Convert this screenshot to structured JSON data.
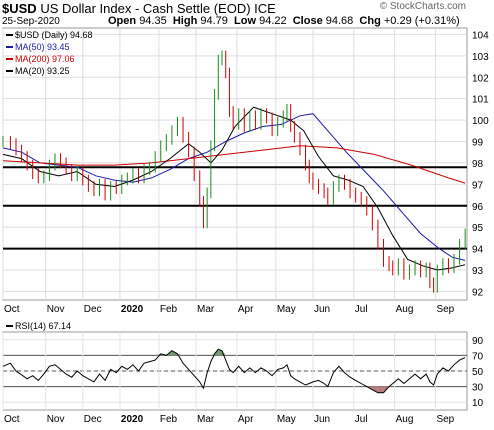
{
  "header": {
    "symbol": "$USD",
    "name": "US Dollar Index - Cash Settle (EOD)",
    "exchange": "ICE",
    "date": "25-Sep-2020",
    "watermark": "© StockCharts.com",
    "open_label": "Open",
    "open": "94.35",
    "high_label": "High",
    "high": "94.79",
    "low_label": "Low",
    "low": "94.22",
    "close_label": "Close",
    "close": "94.68",
    "chg_label": "Chg",
    "chg": "+0.29 (+0.31%)"
  },
  "legend": [
    {
      "text": "$USD (Daily) 94.68",
      "color": "#000000"
    },
    {
      "text": "MA(50) 93.45",
      "color": "#1a1aa6"
    },
    {
      "text": "MA(200) 97.06",
      "color": "#cc0000"
    },
    {
      "text": "MA(20) 93.25",
      "color": "#000000"
    }
  ],
  "rsi_legend": "RSI(14) 67.14",
  "chart_data": [
    {
      "type": "line",
      "panel": "price",
      "x_tick_labels": [
        "Oct",
        "Nov",
        "Dec",
        "2020",
        "Feb",
        "Mar",
        "Apr",
        "May",
        "Jun",
        "Jul",
        "Aug",
        "Sep"
      ],
      "x_tick_positions": [
        0,
        23,
        43,
        63,
        84,
        104,
        126,
        147,
        167,
        189,
        211,
        233
      ],
      "x_range": [
        0,
        250
      ],
      "y_ticks": [
        92,
        93,
        94,
        95,
        96,
        97,
        98,
        99,
        100,
        101,
        102,
        103,
        104
      ],
      "ylim": [
        91.6,
        104.3
      ],
      "horizontal_lines": [
        94,
        96,
        97.8
      ],
      "grid": true,
      "axis_side": "right",
      "series": [
        {
          "name": "$USD (Daily)",
          "style": "candles",
          "color": "#1a8a1a",
          "points": [
            [
              0,
              99.0
            ],
            [
              4,
              98.9
            ],
            [
              7,
              98.6
            ],
            [
              10,
              98.3
            ],
            [
              13,
              97.9
            ],
            [
              16,
              97.5
            ],
            [
              19,
              97.3
            ],
            [
              22,
              97.4
            ],
            [
              25,
              97.9
            ],
            [
              28,
              98.2
            ],
            [
              31,
              98.0
            ],
            [
              34,
              97.7
            ],
            [
              37,
              97.4
            ],
            [
              40,
              97.6
            ],
            [
              43,
              97.2
            ],
            [
              46,
              96.9
            ],
            [
              49,
              96.7
            ],
            [
              52,
              97.0
            ],
            [
              55,
              96.5
            ],
            [
              58,
              96.9
            ],
            [
              61,
              96.8
            ],
            [
              64,
              97.2
            ],
            [
              67,
              97.3
            ],
            [
              70,
              97.5
            ],
            [
              73,
              97.3
            ],
            [
              76,
              97.7
            ],
            [
              79,
              97.8
            ],
            [
              82,
              98.3
            ],
            [
              85,
              98.8
            ],
            [
              88,
              99.1
            ],
            [
              91,
              99.5
            ],
            [
              94,
              99.9
            ],
            [
              97,
              99.2
            ],
            [
              100,
              98.5
            ],
            [
              103,
              97.4
            ],
            [
              106,
              96.2
            ],
            [
              108,
              95.2
            ],
            [
              110,
              96.6
            ],
            [
              112,
              98.8
            ],
            [
              114,
              101.2
            ],
            [
              116,
              102.8
            ],
            [
              118,
              103.0
            ],
            [
              120,
              102.2
            ],
            [
              122,
              100.4
            ],
            [
              124,
              99.8
            ],
            [
              127,
              100.3
            ],
            [
              130,
              99.7
            ],
            [
              133,
              100.2
            ],
            [
              136,
              99.8
            ],
            [
              139,
              100.3
            ],
            [
              142,
              100.1
            ],
            [
              145,
              99.5
            ],
            [
              148,
              99.9
            ],
            [
              151,
              100.2
            ],
            [
              153,
              100.5
            ],
            [
              155,
              99.7
            ],
            [
              157,
              99.2
            ],
            [
              160,
              98.6
            ],
            [
              163,
              97.9
            ],
            [
              165,
              97.3
            ],
            [
              167,
              97.0
            ],
            [
              170,
              96.8
            ],
            [
              173,
              96.6
            ],
            [
              175,
              96.3
            ],
            [
              178,
              96.9
            ],
            [
              181,
              97.2
            ],
            [
              184,
              97.0
            ],
            [
              187,
              96.6
            ],
            [
              190,
              96.4
            ],
            [
              193,
              96.2
            ],
            [
              196,
              95.8
            ],
            [
              199,
              95.1
            ],
            [
              202,
              94.2
            ],
            [
              205,
              93.4
            ],
            [
              208,
              93.2
            ],
            [
              210,
              93.0
            ],
            [
              213,
              93.3
            ],
            [
              216,
              92.8
            ],
            [
              219,
              93.0
            ],
            [
              222,
              93.2
            ],
            [
              225,
              92.9
            ],
            [
              228,
              93.1
            ],
            [
              230,
              92.4
            ],
            [
              232,
              92.2
            ],
            [
              234,
              93.0
            ],
            [
              237,
              93.3
            ],
            [
              240,
              93.1
            ],
            [
              243,
              93.5
            ],
            [
              246,
              94.2
            ],
            [
              249,
              94.68
            ]
          ]
        },
        {
          "name": "MA(50)",
          "color": "#1a1aa6",
          "points": [
            [
              0,
              98.7
            ],
            [
              10,
              98.5
            ],
            [
              20,
              98.0
            ],
            [
              30,
              97.9
            ],
            [
              40,
              97.8
            ],
            [
              50,
              97.4
            ],
            [
              60,
              97.2
            ],
            [
              70,
              97.1
            ],
            [
              80,
              97.3
            ],
            [
              90,
              97.7
            ],
            [
              100,
              98.2
            ],
            [
              110,
              98.5
            ],
            [
              120,
              99.0
            ],
            [
              130,
              99.4
            ],
            [
              140,
              99.7
            ],
            [
              150,
              99.8
            ],
            [
              160,
              100.2
            ],
            [
              167,
              100.3
            ],
            [
              175,
              99.5
            ],
            [
              185,
              98.5
            ],
            [
              195,
              97.6
            ],
            [
              205,
              96.7
            ],
            [
              215,
              95.7
            ],
            [
              225,
              94.7
            ],
            [
              235,
              94.0
            ],
            [
              242,
              93.6
            ],
            [
              249,
              93.45
            ]
          ]
        },
        {
          "name": "MA(200)",
          "color": "#cc0000",
          "points": [
            [
              0,
              98.1
            ],
            [
              20,
              98.0
            ],
            [
              40,
              97.9
            ],
            [
              60,
              97.9
            ],
            [
              80,
              98.0
            ],
            [
              100,
              98.2
            ],
            [
              120,
              98.4
            ],
            [
              140,
              98.6
            ],
            [
              160,
              98.8
            ],
            [
              180,
              98.7
            ],
            [
              200,
              98.4
            ],
            [
              220,
              97.9
            ],
            [
              240,
              97.3
            ],
            [
              249,
              97.06
            ]
          ]
        },
        {
          "name": "MA(20)",
          "color": "#000000",
          "points": [
            [
              0,
              98.4
            ],
            [
              10,
              98.2
            ],
            [
              20,
              97.6
            ],
            [
              30,
              97.4
            ],
            [
              40,
              97.6
            ],
            [
              50,
              97.0
            ],
            [
              60,
              96.9
            ],
            [
              70,
              97.2
            ],
            [
              80,
              97.6
            ],
            [
              90,
              98.2
            ],
            [
              100,
              98.9
            ],
            [
              106,
              98.5
            ],
            [
              112,
              98.0
            ],
            [
              118,
              98.6
            ],
            [
              125,
              99.7
            ],
            [
              135,
              100.6
            ],
            [
              145,
              100.3
            ],
            [
              155,
              100.0
            ],
            [
              162,
              99.5
            ],
            [
              170,
              98.3
            ],
            [
              178,
              97.4
            ],
            [
              186,
              97.2
            ],
            [
              194,
              96.9
            ],
            [
              202,
              95.9
            ],
            [
              210,
              94.6
            ],
            [
              218,
              93.5
            ],
            [
              226,
              93.2
            ],
            [
              234,
              93.0
            ],
            [
              242,
              93.1
            ],
            [
              249,
              93.25
            ]
          ]
        }
      ]
    },
    {
      "type": "line",
      "panel": "rsi",
      "x_tick_labels": [
        "Oct",
        "Nov",
        "Dec",
        "2020",
        "Feb",
        "Mar",
        "Apr",
        "May",
        "Jun",
        "Jul",
        "Aug",
        "Sep"
      ],
      "x_tick_positions": [
        0,
        23,
        43,
        63,
        84,
        104,
        126,
        147,
        167,
        189,
        211,
        233
      ],
      "x_range": [
        0,
        250
      ],
      "y_ticks": [
        10,
        30,
        50,
        70,
        90
      ],
      "ylim": [
        0,
        100
      ],
      "reference_lines": [
        30,
        50,
        70
      ],
      "series": [
        {
          "name": "RSI(14)",
          "color": "#000000",
          "points": [
            [
              0,
              56
            ],
            [
              4,
              60
            ],
            [
              7,
              50
            ],
            [
              10,
              45
            ],
            [
              13,
              40
            ],
            [
              16,
              44
            ],
            [
              19,
              38
            ],
            [
              22,
              46
            ],
            [
              25,
              56
            ],
            [
              28,
              58
            ],
            [
              31,
              52
            ],
            [
              34,
              46
            ],
            [
              37,
              42
            ],
            [
              40,
              50
            ],
            [
              43,
              44
            ],
            [
              46,
              40
            ],
            [
              49,
              36
            ],
            [
              52,
              46
            ],
            [
              55,
              38
            ],
            [
              58,
              52
            ],
            [
              61,
              48
            ],
            [
              64,
              56
            ],
            [
              67,
              52
            ],
            [
              70,
              58
            ],
            [
              73,
              50
            ],
            [
              76,
              60
            ],
            [
              79,
              62
            ],
            [
              82,
              64
            ],
            [
              85,
              72
            ],
            [
              88,
              70
            ],
            [
              91,
              76
            ],
            [
              94,
              72
            ],
            [
              97,
              60
            ],
            [
              100,
              52
            ],
            [
              103,
              44
            ],
            [
              106,
              36
            ],
            [
              108,
              28
            ],
            [
              110,
              48
            ],
            [
              112,
              62
            ],
            [
              114,
              72
            ],
            [
              116,
              78
            ],
            [
              118,
              76
            ],
            [
              120,
              64
            ],
            [
              122,
              52
            ],
            [
              124,
              48
            ],
            [
              127,
              56
            ],
            [
              130,
              48
            ],
            [
              133,
              54
            ],
            [
              136,
              48
            ],
            [
              139,
              54
            ],
            [
              142,
              50
            ],
            [
              145,
              44
            ],
            [
              148,
              52
            ],
            [
              151,
              54
            ],
            [
              153,
              58
            ],
            [
              155,
              44
            ],
            [
              157,
              40
            ],
            [
              160,
              36
            ],
            [
              163,
              32
            ],
            [
              165,
              34
            ],
            [
              167,
              36
            ],
            [
              170,
              38
            ],
            [
              173,
              34
            ],
            [
              175,
              30
            ],
            [
              178,
              48
            ],
            [
              181,
              56
            ],
            [
              184,
              48
            ],
            [
              187,
              42
            ],
            [
              190,
              38
            ],
            [
              193,
              34
            ],
            [
              196,
              30
            ],
            [
              199,
              26
            ],
            [
              202,
              22
            ],
            [
              205,
              22
            ],
            [
              208,
              30
            ],
            [
              210,
              34
            ],
            [
              213,
              40
            ],
            [
              216,
              34
            ],
            [
              219,
              40
            ],
            [
              222,
              46
            ],
            [
              225,
              40
            ],
            [
              228,
              46
            ],
            [
              230,
              36
            ],
            [
              232,
              32
            ],
            [
              234,
              46
            ],
            [
              237,
              54
            ],
            [
              240,
              50
            ],
            [
              243,
              58
            ],
            [
              246,
              64
            ],
            [
              249,
              67.14
            ]
          ]
        }
      ]
    }
  ]
}
